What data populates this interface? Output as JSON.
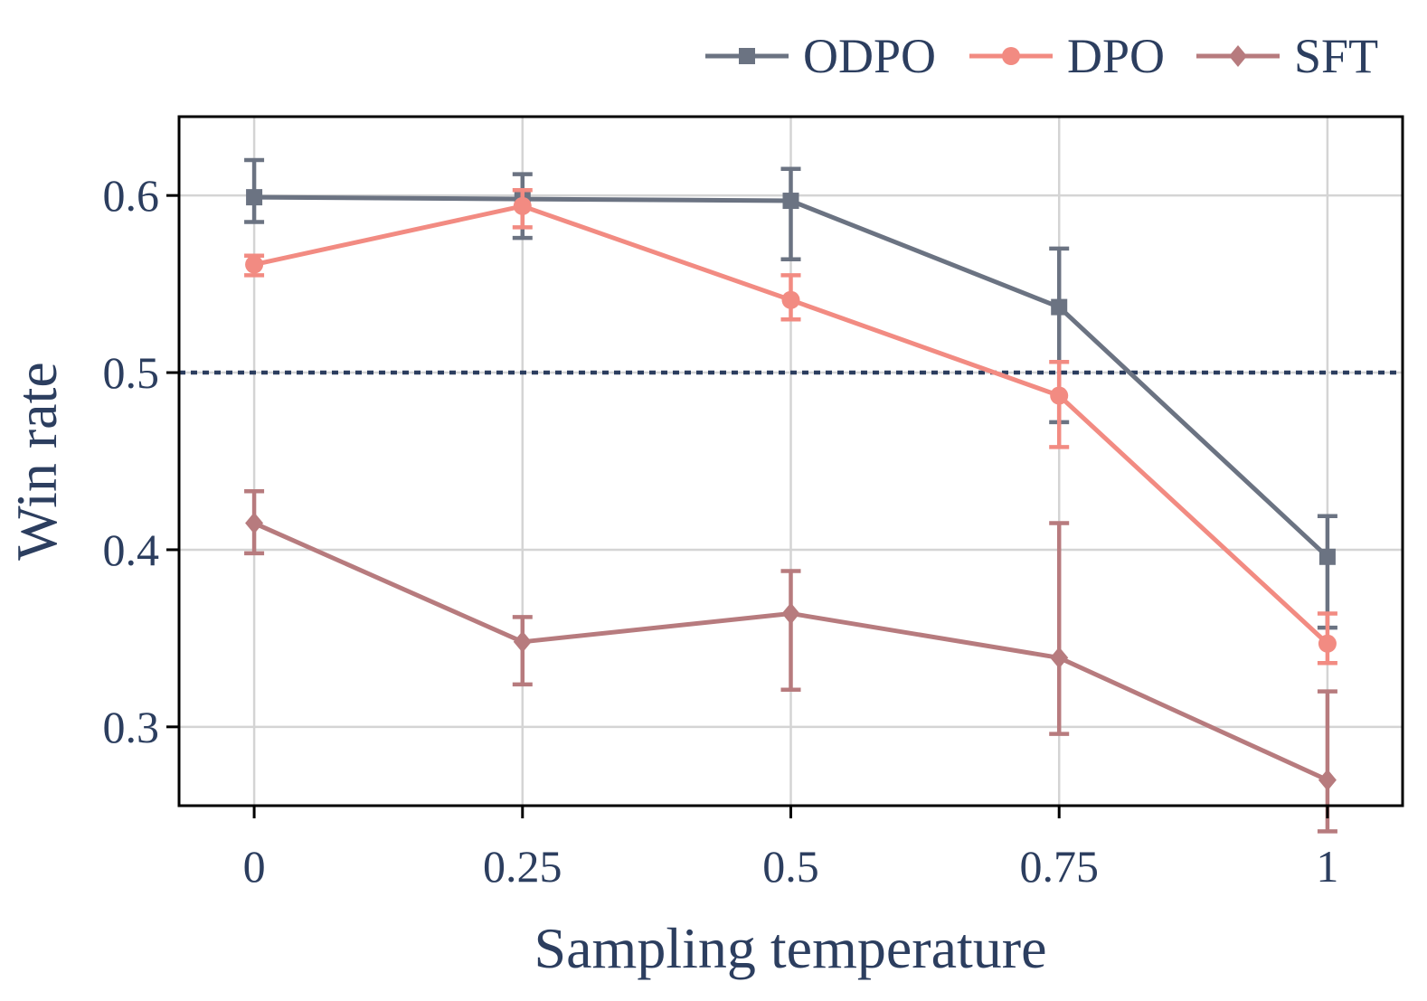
{
  "chart_data": {
    "type": "line",
    "title": "",
    "xlabel": "Sampling temperature",
    "ylabel": "Win rate",
    "x": [
      0,
      0.25,
      0.5,
      0.75,
      1
    ],
    "x_tick_labels": [
      "0",
      "0.25",
      "0.5",
      "0.75",
      "1"
    ],
    "y_ticks": [
      0.3,
      0.4,
      0.5,
      0.6
    ],
    "y_tick_labels": [
      "0.3",
      "0.4",
      "0.5",
      "0.6"
    ],
    "xlim": [
      -0.07,
      1.07
    ],
    "ylim": [
      0.2555,
      0.6445
    ],
    "grid": true,
    "legend_position": "top-right",
    "reference_line": {
      "y": 0.5,
      "style": "dotted",
      "color": "#2c3e5f"
    },
    "series": [
      {
        "name": "ODPO",
        "color": "#6b7382",
        "marker": "square",
        "values": [
          0.599,
          0.598,
          0.597,
          0.537,
          0.396
        ],
        "err_low": [
          0.585,
          0.576,
          0.564,
          0.472,
          0.356
        ],
        "err_high": [
          0.62,
          0.612,
          0.615,
          0.57,
          0.419
        ]
      },
      {
        "name": "DPO",
        "color": "#f28b82",
        "marker": "circle",
        "values": [
          0.561,
          0.594,
          0.541,
          0.487,
          0.347
        ],
        "err_low": [
          0.555,
          0.582,
          0.53,
          0.458,
          0.336
        ],
        "err_high": [
          0.566,
          0.603,
          0.555,
          0.506,
          0.364
        ]
      },
      {
        "name": "SFT",
        "color": "#b77b7e",
        "marker": "diamond",
        "values": [
          0.415,
          0.348,
          0.364,
          0.339,
          0.27
        ],
        "err_low": [
          0.398,
          0.324,
          0.321,
          0.296,
          0.241
        ],
        "err_high": [
          0.433,
          0.362,
          0.388,
          0.415,
          0.32
        ]
      }
    ]
  }
}
